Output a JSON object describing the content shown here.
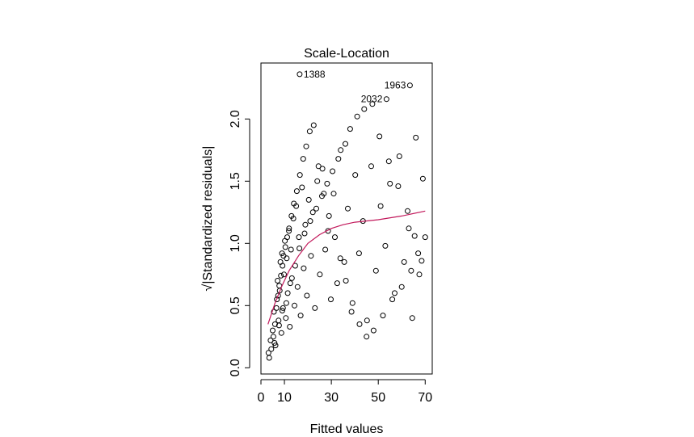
{
  "chart_data": {
    "type": "scatter",
    "title": "Scale-Location",
    "xlabel": "Fitted values",
    "ylabel": "√|Standardized residuals|",
    "xlim": [
      0,
      73
    ],
    "ylim": [
      -0.05,
      2.45
    ],
    "x_ticks": [
      0,
      10,
      30,
      50,
      70
    ],
    "x_tick_labels": [
      "0",
      "10",
      "30",
      "50",
      "70"
    ],
    "y_ticks": [
      0.0,
      0.5,
      1.0,
      1.5,
      2.0
    ],
    "y_tick_labels": [
      "0.0",
      "0.5",
      "1.0",
      "1.5",
      "2.0"
    ],
    "grid": false,
    "point_color": "#000000",
    "smooth_color": "#c2185b",
    "smooth_line": {
      "x": [
        3,
        6,
        9,
        12,
        16,
        20,
        25,
        30,
        35,
        40,
        50,
        60,
        70
      ],
      "y": [
        0.35,
        0.52,
        0.66,
        0.78,
        0.9,
        1.0,
        1.07,
        1.12,
        1.15,
        1.17,
        1.19,
        1.22,
        1.26
      ]
    },
    "labeled_points": [
      {
        "label": "1388",
        "x": 16.5,
        "y": 2.36
      },
      {
        "label": "1963",
        "x": 63.5,
        "y": 2.27
      },
      {
        "label": "2032",
        "x": 53.5,
        "y": 2.16
      }
    ],
    "series": [
      {
        "x": [
          3.2,
          4.1,
          5.0,
          5.5,
          6.2,
          6.8,
          7.1,
          7.5,
          8.0,
          8.3,
          8.7,
          9.0,
          9.4,
          9.8,
          10.2,
          10.6,
          11.0,
          11.4,
          11.9,
          12.3,
          12.8,
          13.2,
          13.8,
          14.3,
          15.0,
          15.6,
          16.2,
          16.9,
          17.5,
          18.2,
          18.9,
          19.6,
          20.4,
          21.3,
          22.1,
          23.0,
          24.0,
          25.1,
          26.2,
          27.4,
          28.6,
          29.8,
          31.0,
          32.5,
          34.0,
          35.5,
          37.0,
          38.6,
          40.2,
          41.8,
          43.5,
          45.2,
          47.0,
          49.0,
          51.0,
          53.0,
          55.0,
          57.0,
          59.0,
          61.0,
          63.0,
          64.5,
          66.0,
          67.5,
          69.0,
          3.5,
          4.4,
          5.3,
          6.0,
          6.6,
          7.3,
          7.8,
          8.5,
          9.2,
          9.6,
          10.4,
          11.2,
          12.0,
          13.0,
          14.0,
          15.3,
          16.6,
          18.0,
          19.3,
          20.8,
          22.5,
          24.5,
          26.8,
          29.0,
          31.5,
          33.8,
          36.2,
          39.0,
          42.0,
          45.0,
          48.0,
          52.0,
          56.0,
          60.0,
          64.0,
          67.0,
          70.0,
          5.8,
          7.7,
          9.1,
          10.8,
          12.5,
          14.6,
          16.4,
          18.6,
          21.0,
          23.6,
          26.0,
          28.2,
          30.5,
          33.0,
          36.0,
          38.0,
          41.0,
          44.0,
          47.5,
          50.5,
          54.5,
          58.5,
          62.5,
          65.5,
          68.5
        ],
        "y": [
          0.12,
          0.22,
          0.3,
          0.45,
          0.18,
          0.55,
          0.7,
          0.38,
          0.62,
          0.85,
          0.28,
          0.92,
          0.48,
          0.75,
          1.02,
          0.4,
          0.88,
          0.6,
          1.1,
          0.33,
          0.95,
          0.72,
          1.2,
          0.5,
          1.3,
          0.65,
          1.05,
          0.42,
          1.45,
          0.8,
          1.15,
          0.58,
          1.35,
          0.9,
          1.25,
          0.48,
          1.5,
          0.75,
          1.6,
          0.95,
          1.1,
          0.55,
          1.4,
          0.68,
          1.75,
          0.85,
          1.28,
          0.45,
          1.55,
          0.92,
          1.18,
          0.38,
          1.62,
          0.78,
          1.3,
          0.98,
          1.48,
          0.6,
          1.7,
          0.85,
          1.12,
          0.4,
          1.85,
          0.75,
          1.52,
          0.08,
          0.15,
          0.25,
          0.35,
          0.48,
          0.58,
          0.66,
          0.74,
          0.82,
          0.9,
          0.97,
          1.05,
          1.12,
          1.22,
          1.32,
          1.42,
          1.55,
          1.68,
          1.78,
          1.9,
          1.95,
          1.62,
          1.4,
          1.22,
          1.05,
          0.88,
          0.7,
          0.52,
          0.35,
          0.25,
          0.3,
          0.42,
          0.55,
          0.65,
          0.78,
          0.92,
          1.05,
          0.2,
          0.34,
          0.46,
          0.52,
          0.68,
          0.82,
          0.96,
          1.08,
          1.18,
          1.28,
          1.38,
          1.48,
          1.58,
          1.68,
          1.8,
          1.92,
          2.02,
          2.08,
          2.12,
          1.86,
          1.66,
          1.46,
          1.26,
          1.06,
          0.86
        ]
      }
    ]
  }
}
